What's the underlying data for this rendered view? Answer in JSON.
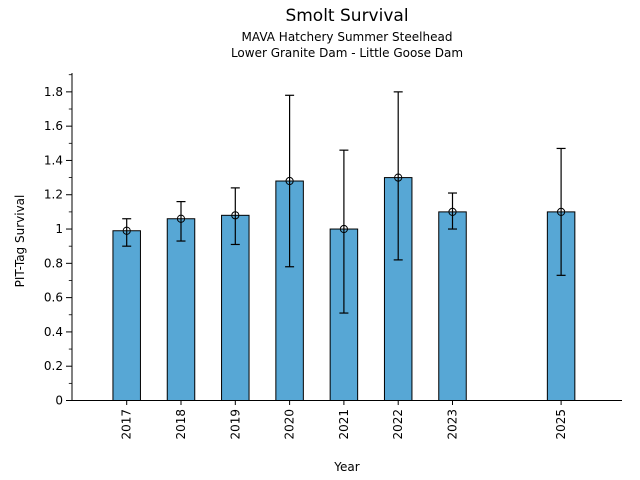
{
  "header": {
    "title": "Smolt Survival",
    "subtitle1": "MAVA Hatchery Summer Steelhead",
    "subtitle2": "Lower Granite Dam - Little Goose Dam"
  },
  "chart_data": {
    "type": "bar",
    "title": "Smolt Survival",
    "subtitle1": "MAVA Hatchery Summer Steelhead",
    "subtitle2": "Lower Granite Dam - Little Goose Dam",
    "xlabel": "Year",
    "ylabel": "PIT-Tag Survival",
    "categories": [
      "2017",
      "2018",
      "2019",
      "2020",
      "2021",
      "2022",
      "2023",
      "2025"
    ],
    "series": [
      {
        "name": "PIT-Tag Survival",
        "values": [
          0.99,
          1.06,
          1.08,
          1.28,
          1.0,
          1.3,
          1.1,
          1.1
        ],
        "error_low": [
          0.9,
          0.93,
          0.91,
          0.78,
          0.51,
          0.82,
          1.0,
          0.73
        ],
        "error_high": [
          1.06,
          1.16,
          1.24,
          1.78,
          1.46,
          1.8,
          1.21,
          1.47
        ]
      }
    ],
    "missing_years": [
      "2024"
    ],
    "ylim": [
      0,
      1.91
    ],
    "yticks": {
      "values": [
        0,
        0.2,
        0.4,
        0.6,
        0.8,
        1.0,
        1.2,
        1.4,
        1.6,
        1.8
      ],
      "labels": [
        "0",
        "0.2",
        "0.4",
        "0.6",
        "0.8",
        "1",
        "1.2",
        "1.4",
        "1.6",
        "1.8"
      ],
      "minor_step": 0.1
    },
    "grid": "off",
    "legend": "none",
    "marker": "open-circle",
    "colors": {
      "bar_fill": "#57a7d5",
      "bar_edge": "#000000",
      "error_bar": "#000000",
      "axis": "#000000",
      "text": "#000000",
      "background": "#ffffff"
    }
  }
}
